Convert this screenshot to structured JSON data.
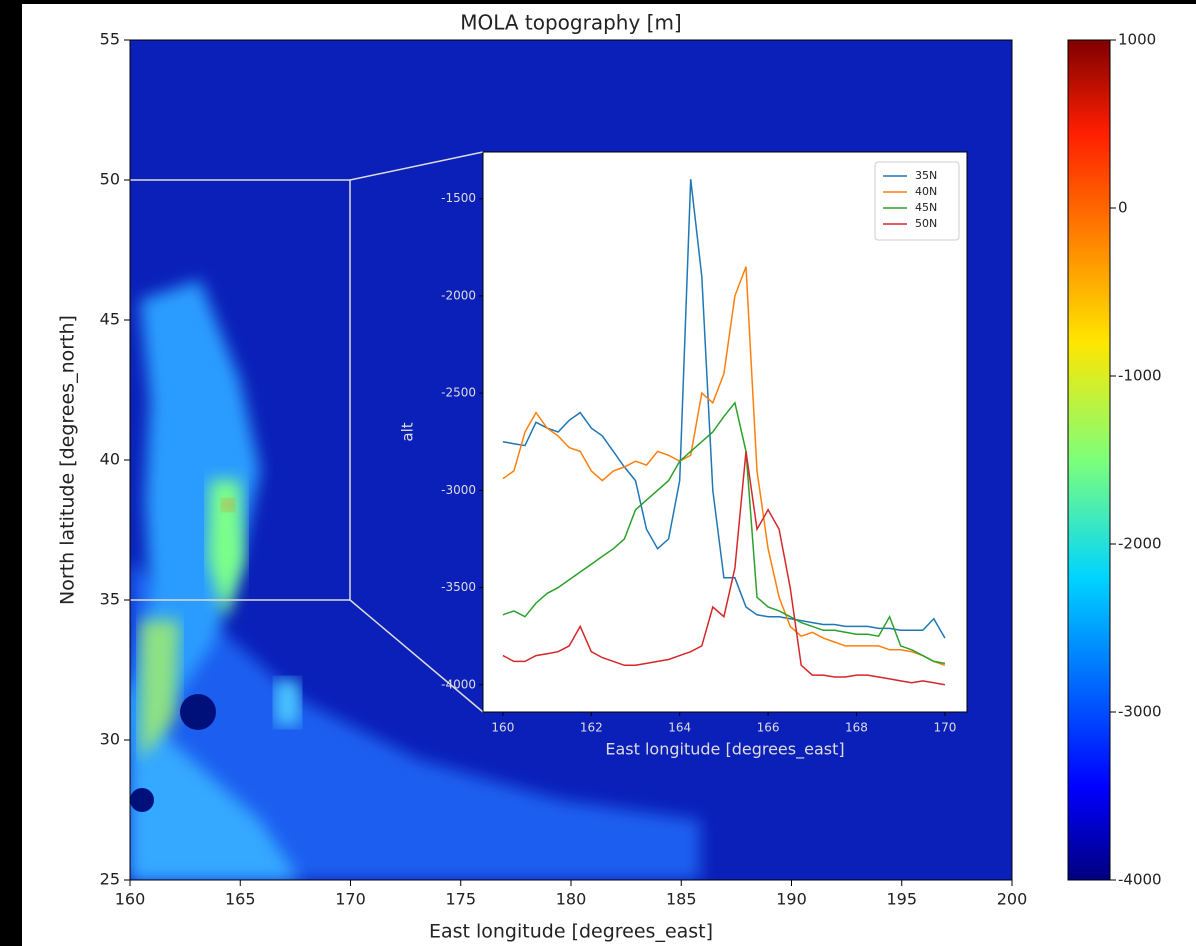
{
  "chart_data": [
    {
      "type": "heatmap",
      "title": "MOLA topography [m]",
      "xlabel": "East longitude [degrees_east]",
      "ylabel": "North latitude [degrees_north]",
      "xlim": [
        160,
        200
      ],
      "ylim": [
        25,
        55
      ],
      "xticks": [
        160,
        165,
        170,
        175,
        180,
        185,
        190,
        195,
        200
      ],
      "yticks": [
        25,
        30,
        35,
        40,
        45,
        50,
        55
      ],
      "colorbar": {
        "clim": [
          -4000,
          1000
        ],
        "ticks": [
          -4000,
          -3000,
          -2000,
          -1000,
          0,
          1000
        ],
        "colormap": "jet"
      }
    },
    {
      "type": "line",
      "xlabel": "East longitude [degrees_east]",
      "ylabel": "alt",
      "xlim": [
        159.55,
        170.5
      ],
      "ylim": [
        -4140,
        -1260
      ],
      "xticks": [
        160,
        162,
        164,
        166,
        168,
        170
      ],
      "yticks": [
        -4000,
        -3500,
        -3000,
        -2500,
        -2000,
        -1500
      ],
      "legend": "upper right",
      "x": [
        160,
        160.25,
        160.5,
        160.75,
        161,
        161.25,
        161.5,
        161.75,
        162,
        162.25,
        162.5,
        162.75,
        163,
        163.25,
        163.5,
        163.75,
        164,
        164.25,
        164.5,
        164.75,
        165,
        165.25,
        165.5,
        165.75,
        166,
        166.25,
        166.5,
        166.75,
        167,
        167.25,
        167.5,
        167.75,
        168,
        168.25,
        168.5,
        168.75,
        169,
        169.25,
        169.5,
        169.75,
        170
      ],
      "series": [
        {
          "name": "35N",
          "color": "#1f77b4",
          "values": [
            -2750,
            -2760,
            -2770,
            -2650,
            -2680,
            -2700,
            -2640,
            -2600,
            -2680,
            -2720,
            -2800,
            -2880,
            -2950,
            -3200,
            -3300,
            -3250,
            -2950,
            -1400,
            -1900,
            -3000,
            -3450,
            -3450,
            -3600,
            -3640,
            -3650,
            -3650,
            -3660,
            -3670,
            -3680,
            -3690,
            -3690,
            -3700,
            -3700,
            -3700,
            -3710,
            -3710,
            -3720,
            -3720,
            -3720,
            -3660,
            -3760
          ]
        },
        {
          "name": "40N",
          "color": "#ff7f0e",
          "values": [
            -2940,
            -2900,
            -2700,
            -2600,
            -2680,
            -2720,
            -2780,
            -2800,
            -2900,
            -2950,
            -2900,
            -2880,
            -2850,
            -2870,
            -2800,
            -2820,
            -2850,
            -2820,
            -2500,
            -2550,
            -2400,
            -2000,
            -1850,
            -2900,
            -3300,
            -3550,
            -3700,
            -3750,
            -3730,
            -3760,
            -3780,
            -3800,
            -3800,
            -3800,
            -3800,
            -3820,
            -3820,
            -3830,
            -3850,
            -3880,
            -3900
          ]
        },
        {
          "name": "45N",
          "color": "#2ca02c",
          "values": [
            -3640,
            -3620,
            -3650,
            -3580,
            -3530,
            -3500,
            -3460,
            -3420,
            -3380,
            -3340,
            -3300,
            -3250,
            -3100,
            -3050,
            -3000,
            -2950,
            -2850,
            -2800,
            -2750,
            -2700,
            -2620,
            -2550,
            -2800,
            -3550,
            -3600,
            -3620,
            -3650,
            -3680,
            -3700,
            -3720,
            -3720,
            -3730,
            -3740,
            -3740,
            -3750,
            -3650,
            -3800,
            -3820,
            -3850,
            -3880,
            -3890
          ]
        },
        {
          "name": "50N",
          "color": "#d62728",
          "values": [
            -3850,
            -3880,
            -3880,
            -3850,
            -3840,
            -3830,
            -3800,
            -3700,
            -3830,
            -3860,
            -3880,
            -3900,
            -3900,
            -3890,
            -3880,
            -3870,
            -3850,
            -3830,
            -3800,
            -3600,
            -3650,
            -3400,
            -2800,
            -3200,
            -3100,
            -3200,
            -3500,
            -3900,
            -3950,
            -3950,
            -3960,
            -3960,
            -3950,
            -3950,
            -3960,
            -3970,
            -3980,
            -3990,
            -3980,
            -3990,
            -4000
          ]
        }
      ]
    }
  ]
}
